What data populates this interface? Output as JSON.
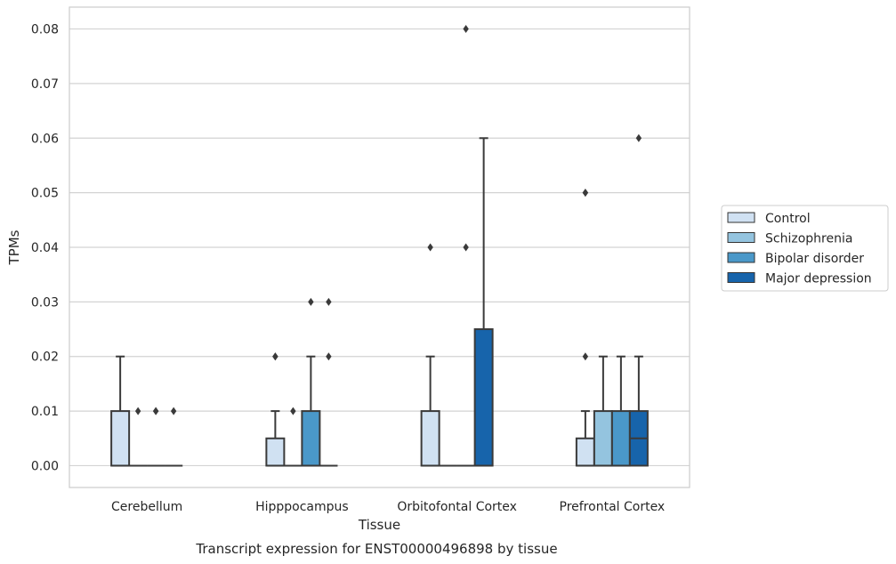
{
  "chart_data": {
    "type": "box",
    "caption": "Transcript expression for ENST00000496898 by tissue",
    "xlabel": "Tissue",
    "ylabel": "TPMs",
    "ylim": [
      -0.004,
      0.084
    ],
    "yticks": [
      0.0,
      0.01,
      0.02,
      0.03,
      0.04,
      0.05,
      0.06,
      0.07,
      0.08
    ],
    "ytick_labels": [
      "0.00",
      "0.01",
      "0.02",
      "0.03",
      "0.04",
      "0.05",
      "0.06",
      "0.07",
      "0.08"
    ],
    "grid": true,
    "legend_position": "right",
    "categories": [
      "Cerebellum",
      "Hipppocampus",
      "Orbitofontal Cortex",
      "Prefrontal Cortex"
    ],
    "series": [
      {
        "name": "Control",
        "color": "#d0e1f2",
        "boxes": [
          {
            "q1": 0.0,
            "median": 0.0,
            "q3": 0.01,
            "whisker_low": 0.0,
            "whisker_high": 0.02,
            "outliers": []
          },
          {
            "q1": 0.0,
            "median": 0.0,
            "q3": 0.005,
            "whisker_low": 0.0,
            "whisker_high": 0.01,
            "outliers": [
              0.02,
              0.02
            ]
          },
          {
            "q1": 0.0,
            "median": 0.0,
            "q3": 0.01,
            "whisker_low": 0.0,
            "whisker_high": 0.02,
            "outliers": [
              0.04
            ]
          },
          {
            "q1": 0.0,
            "median": 0.0,
            "q3": 0.005,
            "whisker_low": 0.0,
            "whisker_high": 0.01,
            "outliers": [
              0.02,
              0.05,
              0.05
            ]
          }
        ]
      },
      {
        "name": "Schizophrenia",
        "color": "#94c4df",
        "boxes": [
          {
            "q1": 0.0,
            "median": 0.0,
            "q3": 0.0,
            "whisker_low": 0.0,
            "whisker_high": 0.0,
            "outliers": [
              0.01
            ]
          },
          {
            "q1": 0.0,
            "median": 0.0,
            "q3": 0.0,
            "whisker_low": 0.0,
            "whisker_high": 0.0,
            "outliers": [
              0.01
            ]
          },
          {
            "q1": 0.0,
            "median": 0.0,
            "q3": 0.0,
            "whisker_low": 0.0,
            "whisker_high": 0.0,
            "outliers": []
          },
          {
            "q1": 0.0,
            "median": 0.0,
            "q3": 0.01,
            "whisker_low": 0.0,
            "whisker_high": 0.02,
            "outliers": []
          }
        ]
      },
      {
        "name": "Bipolar disorder",
        "color": "#4a98c9",
        "boxes": [
          {
            "q1": 0.0,
            "median": 0.0,
            "q3": 0.0,
            "whisker_low": 0.0,
            "whisker_high": 0.0,
            "outliers": [
              0.01,
              0.01
            ]
          },
          {
            "q1": 0.0,
            "median": 0.0,
            "q3": 0.01,
            "whisker_low": 0.0,
            "whisker_high": 0.02,
            "outliers": [
              0.03
            ]
          },
          {
            "q1": 0.0,
            "median": 0.0,
            "q3": 0.0,
            "whisker_low": 0.0,
            "whisker_high": 0.0,
            "outliers": [
              0.04,
              0.08
            ]
          },
          {
            "q1": 0.0,
            "median": 0.0,
            "q3": 0.01,
            "whisker_low": 0.0,
            "whisker_high": 0.02,
            "outliers": []
          }
        ]
      },
      {
        "name": "Major depression",
        "color": "#1764ab",
        "boxes": [
          {
            "q1": 0.0,
            "median": 0.0,
            "q3": 0.0,
            "whisker_low": 0.0,
            "whisker_high": 0.0,
            "outliers": [
              0.01
            ]
          },
          {
            "q1": 0.0,
            "median": 0.0,
            "q3": 0.0,
            "whisker_low": 0.0,
            "whisker_high": 0.0,
            "outliers": [
              0.02,
              0.03
            ]
          },
          {
            "q1": 0.0,
            "median": 0.0,
            "q3": 0.025,
            "whisker_low": 0.0,
            "whisker_high": 0.06,
            "outliers": []
          },
          {
            "q1": 0.0,
            "median": 0.005,
            "q3": 0.01,
            "whisker_low": 0.0,
            "whisker_high": 0.02,
            "outliers": [
              0.06
            ]
          }
        ]
      }
    ]
  }
}
